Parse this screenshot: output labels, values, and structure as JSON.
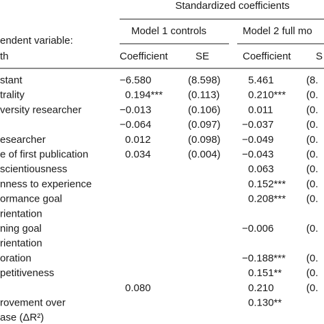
{
  "table": {
    "group_header": "Standardized coefficients",
    "model_headers": [
      "Model 1 controls",
      "Model 2 full mo"
    ],
    "stub_header": [
      "endent variable:",
      "th"
    ],
    "column_headers": [
      "Coefficient",
      "SE",
      "Coefficient",
      "S"
    ],
    "rows": [
      [
        "stant",
        "−6.580",
        "(8.598)",
        "5.461",
        "(8."
      ],
      [
        "trality",
        "0.194***",
        "(0.113)",
        "0.210***",
        "(0."
      ],
      [
        "versity researcher",
        "−0.013",
        "(0.106)",
        "0.011",
        "(0."
      ],
      [
        "",
        "−0.064",
        "(0.097)",
        "−0.037",
        "(0."
      ],
      [
        "esearcher",
        "0.012",
        "(0.098)",
        "−0.049",
        "(0."
      ],
      [
        "e of first publication",
        "0.034",
        "(0.004)",
        "−0.043",
        "(0."
      ],
      [
        "scientiousness",
        "",
        "",
        "0.063",
        "(0."
      ],
      [
        "nness to experience",
        "",
        "",
        "0.152***",
        "(0."
      ],
      [
        "ormance goal",
        "",
        "",
        "0.208***",
        "(0."
      ],
      [
        "rientation",
        "",
        "",
        "",
        ""
      ],
      [
        "ning goal",
        "",
        "",
        "−0.006",
        "(0."
      ],
      [
        "rientation",
        "",
        "",
        "",
        ""
      ],
      [
        "oration",
        "",
        "",
        "−0.188***",
        "(0."
      ],
      [
        "petitiveness",
        "",
        "",
        "0.151**",
        "(0."
      ],
      [
        "",
        "0.080",
        "",
        "0.210",
        "(0."
      ],
      [
        "rovement over",
        "",
        "",
        "0.130**",
        ""
      ],
      [
        "ase (ΔR²)",
        "",
        "",
        "",
        ""
      ]
    ]
  }
}
